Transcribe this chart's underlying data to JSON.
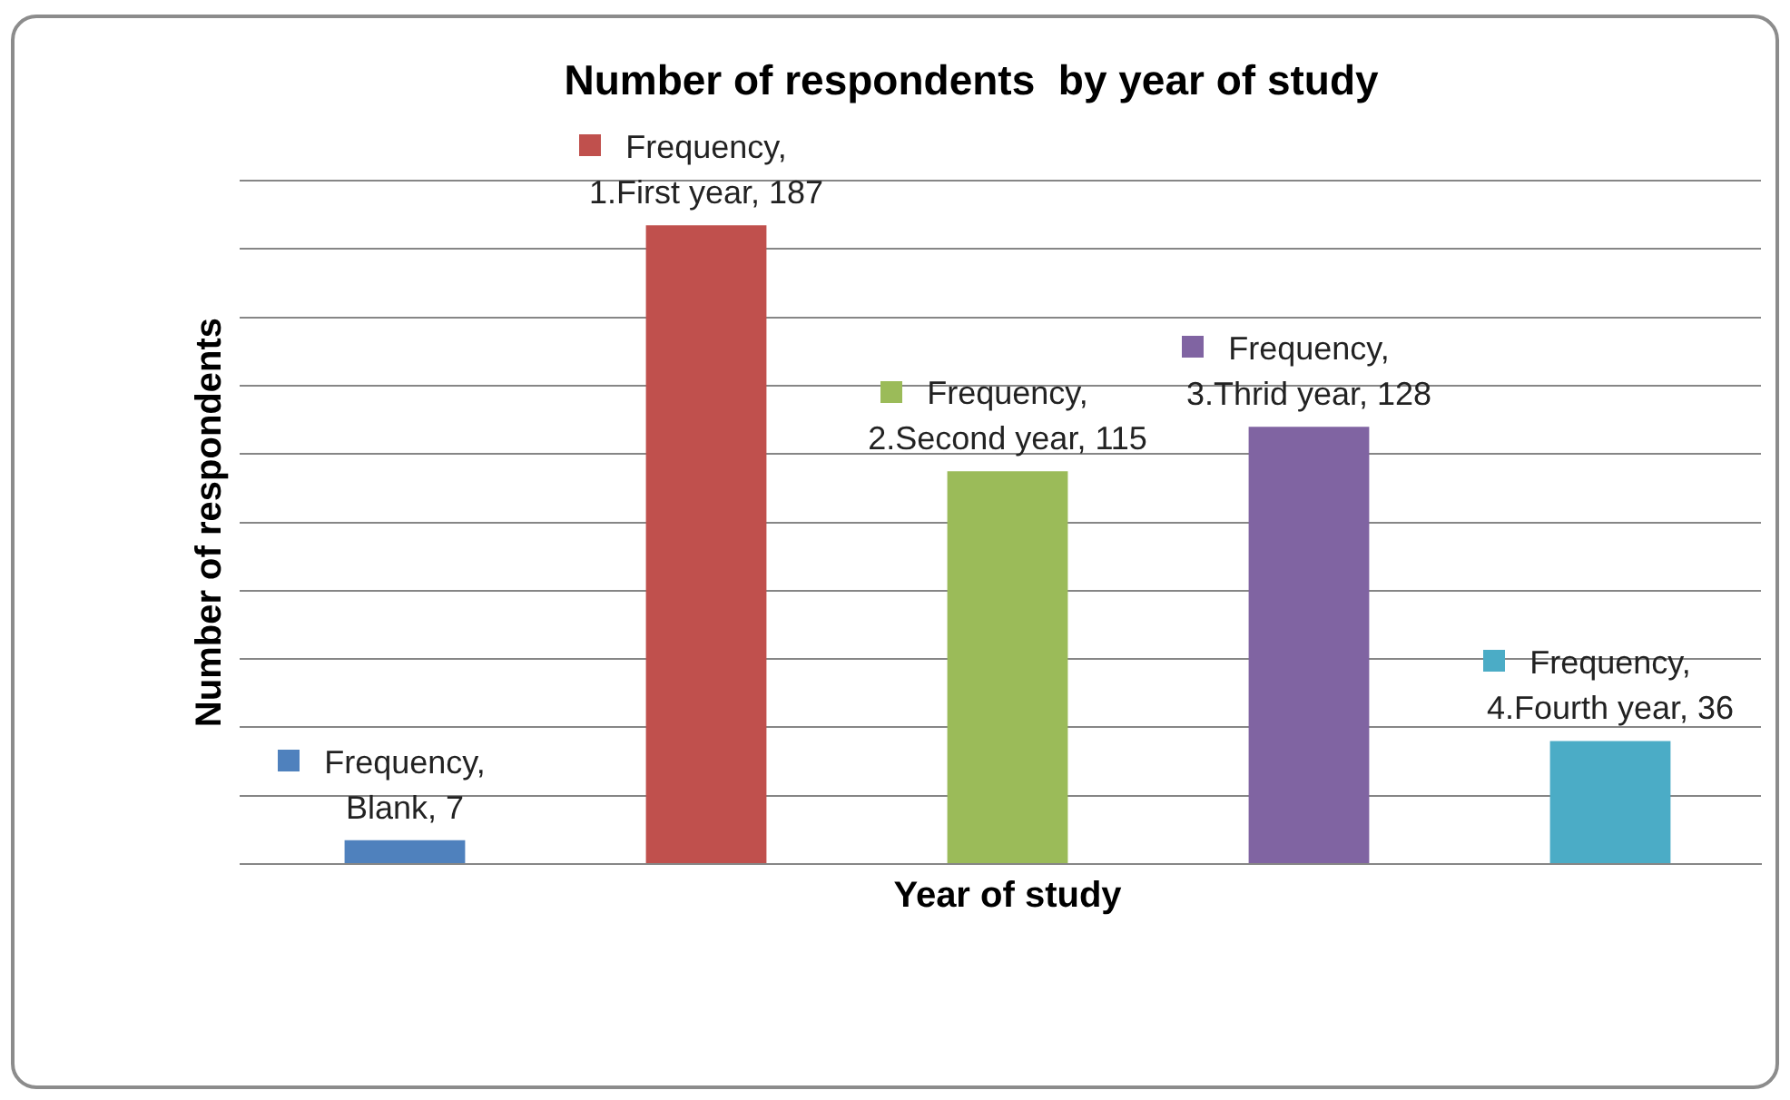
{
  "chart_data": {
    "type": "bar",
    "title": "Number of respondents  by year of study",
    "xlabel": "Year of study",
    "ylabel": "Number of respondents",
    "categories": [
      null,
      null,
      null,
      null,
      null
    ],
    "values": [
      7,
      187,
      115,
      128,
      36
    ],
    "colors": [
      "#4f81bd",
      "#c0504d",
      "#9bbb59",
      "#8064a2",
      "#4bacc6"
    ],
    "value_labels": [
      "Frequency, Blank, 7",
      "Frequency, 1.First year, 187",
      "Frequency, 2.Second year, 115",
      "Frequency, 3.Thrid year, 128",
      "Frequency, 4.Fourth year, 36"
    ],
    "ylim": [
      0,
      200
    ],
    "yticks": [
      {
        "value": 0,
        "label": null
      },
      {
        "value": 20,
        "label": null
      },
      {
        "value": 40,
        "label": null
      },
      {
        "value": 60,
        "label": null
      },
      {
        "value": 80,
        "label": null
      },
      {
        "value": 100,
        "label": null
      },
      {
        "value": 120,
        "label": null
      },
      {
        "value": 140,
        "label": null
      },
      {
        "value": 160,
        "label": null
      },
      {
        "value": 180,
        "label": null
      },
      {
        "value": 200,
        "label": null
      }
    ],
    "tick_labels": false,
    "grid": "y"
  }
}
